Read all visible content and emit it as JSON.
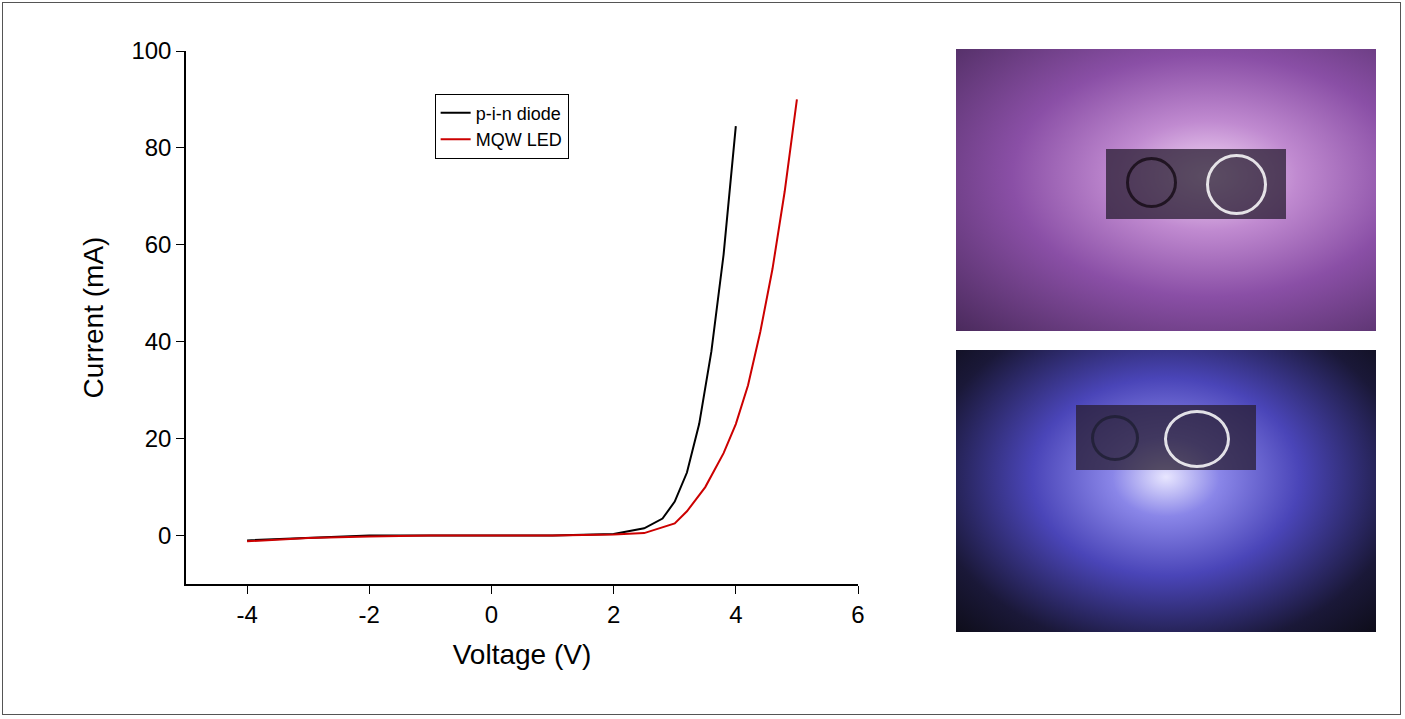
{
  "chart_data": {
    "type": "line",
    "x_label": "Voltage (V)",
    "y_label": "Current (mA)",
    "xlim": [
      -5,
      6
    ],
    "ylim": [
      -10,
      100
    ],
    "xticks": [
      -4,
      -2,
      0,
      2,
      4,
      6
    ],
    "yticks": [
      0,
      20,
      40,
      60,
      80,
      100
    ],
    "grid": false,
    "legend": "top",
    "series": [
      {
        "name": "p-i-n diode",
        "color": "#000000",
        "x": [
          -4,
          -3,
          -2,
          -1,
          0,
          1,
          2,
          2.5,
          2.8,
          3.0,
          3.2,
          3.4,
          3.6,
          3.8,
          4.0
        ],
        "values": [
          -1,
          -0.5,
          0,
          0,
          0,
          0,
          0.3,
          1.5,
          3.5,
          7,
          13,
          23,
          38,
          58,
          84.5
        ]
      },
      {
        "name": "MQW LED",
        "color": "#cc0000",
        "x": [
          -4,
          -3,
          -2,
          -1,
          0,
          1,
          2,
          2.5,
          3.0,
          3.2,
          3.5,
          3.8,
          4.0,
          4.2,
          4.4,
          4.6,
          4.8,
          5.0
        ],
        "values": [
          -1.2,
          -0.5,
          -0.2,
          0,
          0,
          0,
          0.2,
          0.5,
          2.5,
          5,
          10,
          17,
          23,
          31,
          42,
          55,
          71,
          90
        ]
      }
    ]
  }
}
